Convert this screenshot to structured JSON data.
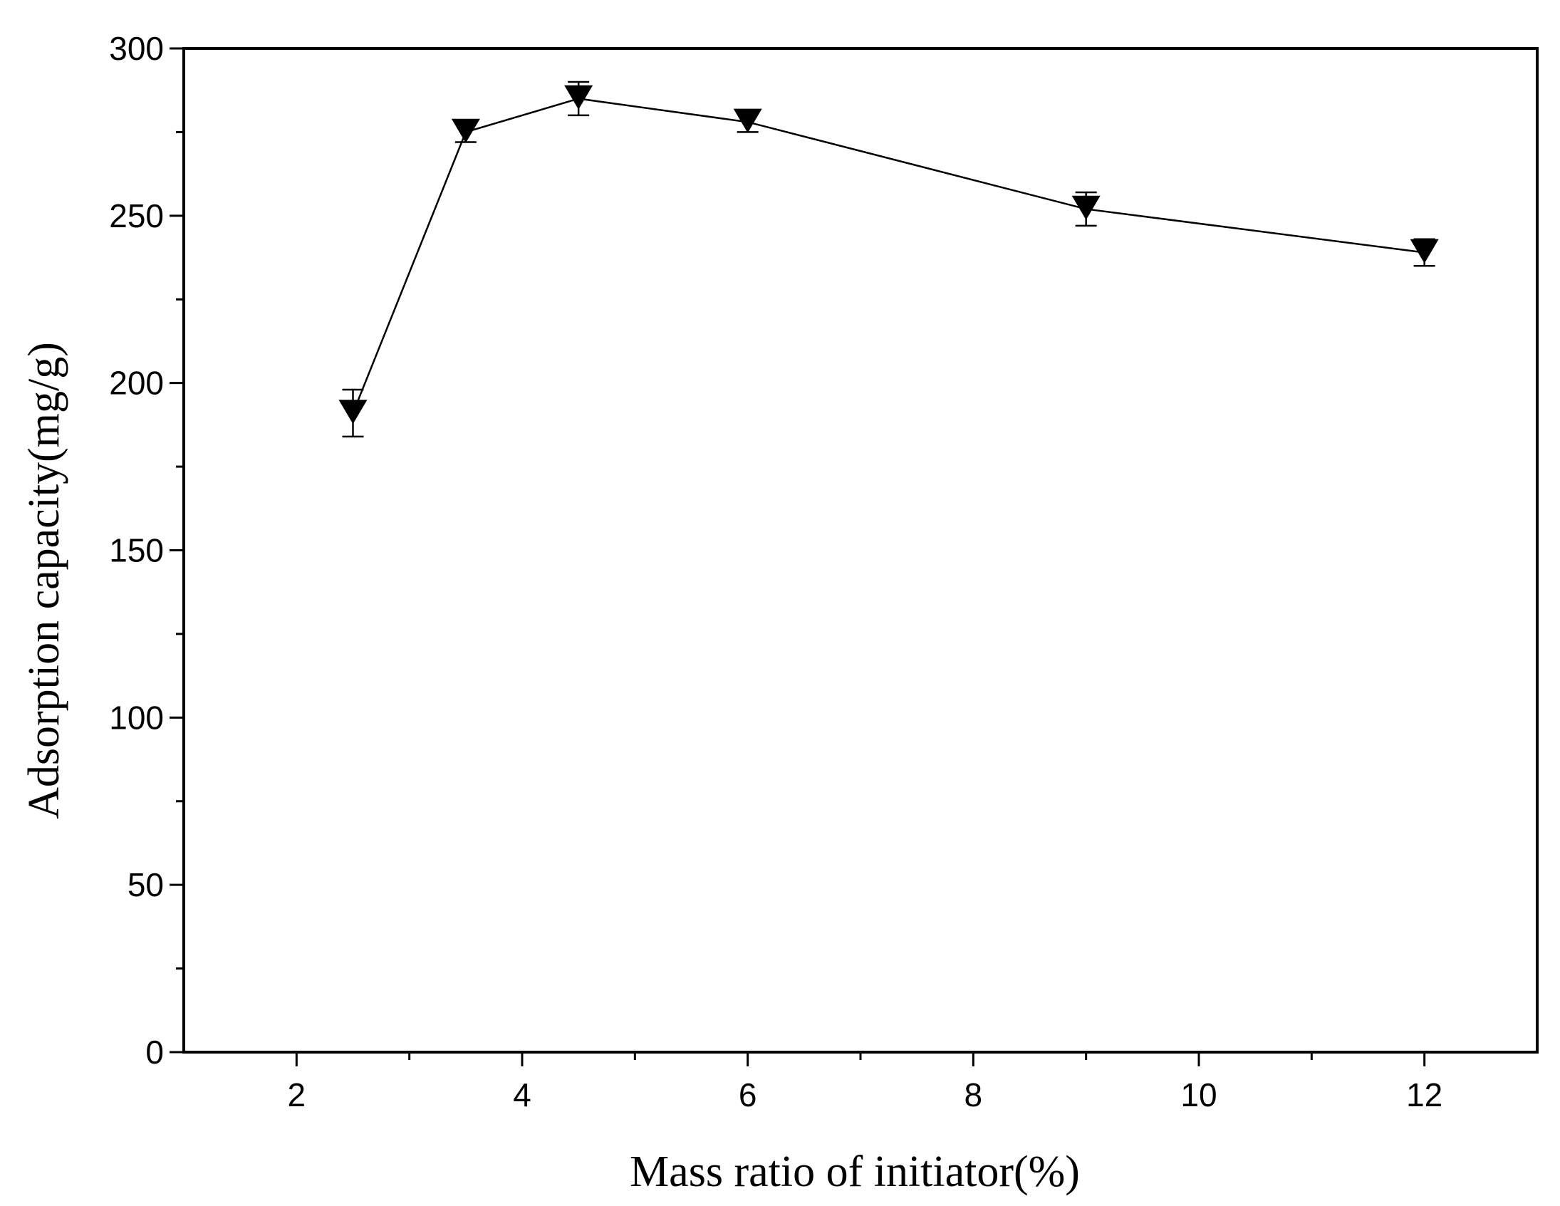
{
  "chart_data": {
    "type": "line",
    "title": "",
    "xlabel": "Mass ratio of  initiator(%)",
    "ylabel": "Adsorption capacity(mg/g)",
    "xlim": [
      1,
      13
    ],
    "ylim": [
      0,
      300
    ],
    "xticks": [
      2,
      4,
      6,
      8,
      10,
      12
    ],
    "xticks_minor": [
      3,
      5,
      7,
      9,
      11
    ],
    "yticks": [
      0,
      50,
      100,
      150,
      200,
      250,
      300
    ],
    "yticks_minor": [
      25,
      75,
      125,
      175,
      225,
      275
    ],
    "grid": false,
    "marker": "down-triangle",
    "series": [
      {
        "name": "Adsorption capacity",
        "x": [
          2.5,
          3.5,
          4.5,
          6,
          9,
          12
        ],
        "y": [
          191,
          275,
          285,
          278,
          252,
          239
        ],
        "error": [
          7,
          3,
          5,
          3,
          5,
          4
        ]
      }
    ]
  }
}
